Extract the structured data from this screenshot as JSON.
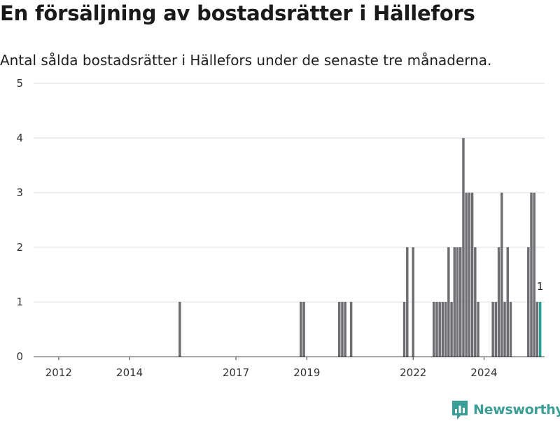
{
  "header": {
    "title": "En försäljning av bostadsrätter i Hällefors",
    "subtitle": "Antal sålda bostadsrätter i Hällefors under de senaste tre månaderna."
  },
  "brand": {
    "name": "Newsworthy",
    "icon": "newsworthy-logo-icon",
    "color": "#3b9e96"
  },
  "colors": {
    "bar": "#6e6d72",
    "highlight": "#27a096",
    "grid": "#dddddd",
    "axis": "#333333"
  },
  "chart_data": {
    "type": "bar",
    "title": "En försäljning av bostadsrätter i Hällefors",
    "xlabel": "",
    "ylabel": "",
    "ylim": [
      0,
      5
    ],
    "yticks": [
      0,
      1,
      2,
      3,
      4,
      5
    ],
    "xticks": [
      "2012",
      "2014",
      "2017",
      "2019",
      "2022",
      "2024"
    ],
    "xrange": [
      "2011-05",
      "2025-08"
    ],
    "grid": true,
    "series": [
      {
        "values": [
          {
            "x": "2015-06",
            "y": 1
          },
          {
            "x": "2018-11",
            "y": 1
          },
          {
            "x": "2018-12",
            "y": 1
          },
          {
            "x": "2019-12",
            "y": 1
          },
          {
            "x": "2020-01",
            "y": 1
          },
          {
            "x": "2020-02",
            "y": 1
          },
          {
            "x": "2020-04",
            "y": 1
          },
          {
            "x": "2021-10",
            "y": 1
          },
          {
            "x": "2021-11",
            "y": 2
          },
          {
            "x": "2022-01",
            "y": 2
          },
          {
            "x": "2022-08",
            "y": 1
          },
          {
            "x": "2022-09",
            "y": 1
          },
          {
            "x": "2022-10",
            "y": 1
          },
          {
            "x": "2022-11",
            "y": 1
          },
          {
            "x": "2022-12",
            "y": 1
          },
          {
            "x": "2023-01",
            "y": 2
          },
          {
            "x": "2023-02",
            "y": 1
          },
          {
            "x": "2023-03",
            "y": 2
          },
          {
            "x": "2023-04",
            "y": 2
          },
          {
            "x": "2023-05",
            "y": 2
          },
          {
            "x": "2023-06",
            "y": 4
          },
          {
            "x": "2023-07",
            "y": 3
          },
          {
            "x": "2023-08",
            "y": 3
          },
          {
            "x": "2023-09",
            "y": 3
          },
          {
            "x": "2023-10",
            "y": 2
          },
          {
            "x": "2023-11",
            "y": 1
          },
          {
            "x": "2024-04",
            "y": 1
          },
          {
            "x": "2024-05",
            "y": 1
          },
          {
            "x": "2024-06",
            "y": 2
          },
          {
            "x": "2024-07",
            "y": 3
          },
          {
            "x": "2024-08",
            "y": 1
          },
          {
            "x": "2024-09",
            "y": 2
          },
          {
            "x": "2024-10",
            "y": 1
          },
          {
            "x": "2025-04",
            "y": 2
          },
          {
            "x": "2025-05",
            "y": 3
          },
          {
            "x": "2025-06",
            "y": 3
          },
          {
            "x": "2025-07",
            "y": 1
          },
          {
            "x": "2025-08",
            "y": 1,
            "highlight": true,
            "label": "1"
          }
        ]
      }
    ]
  }
}
